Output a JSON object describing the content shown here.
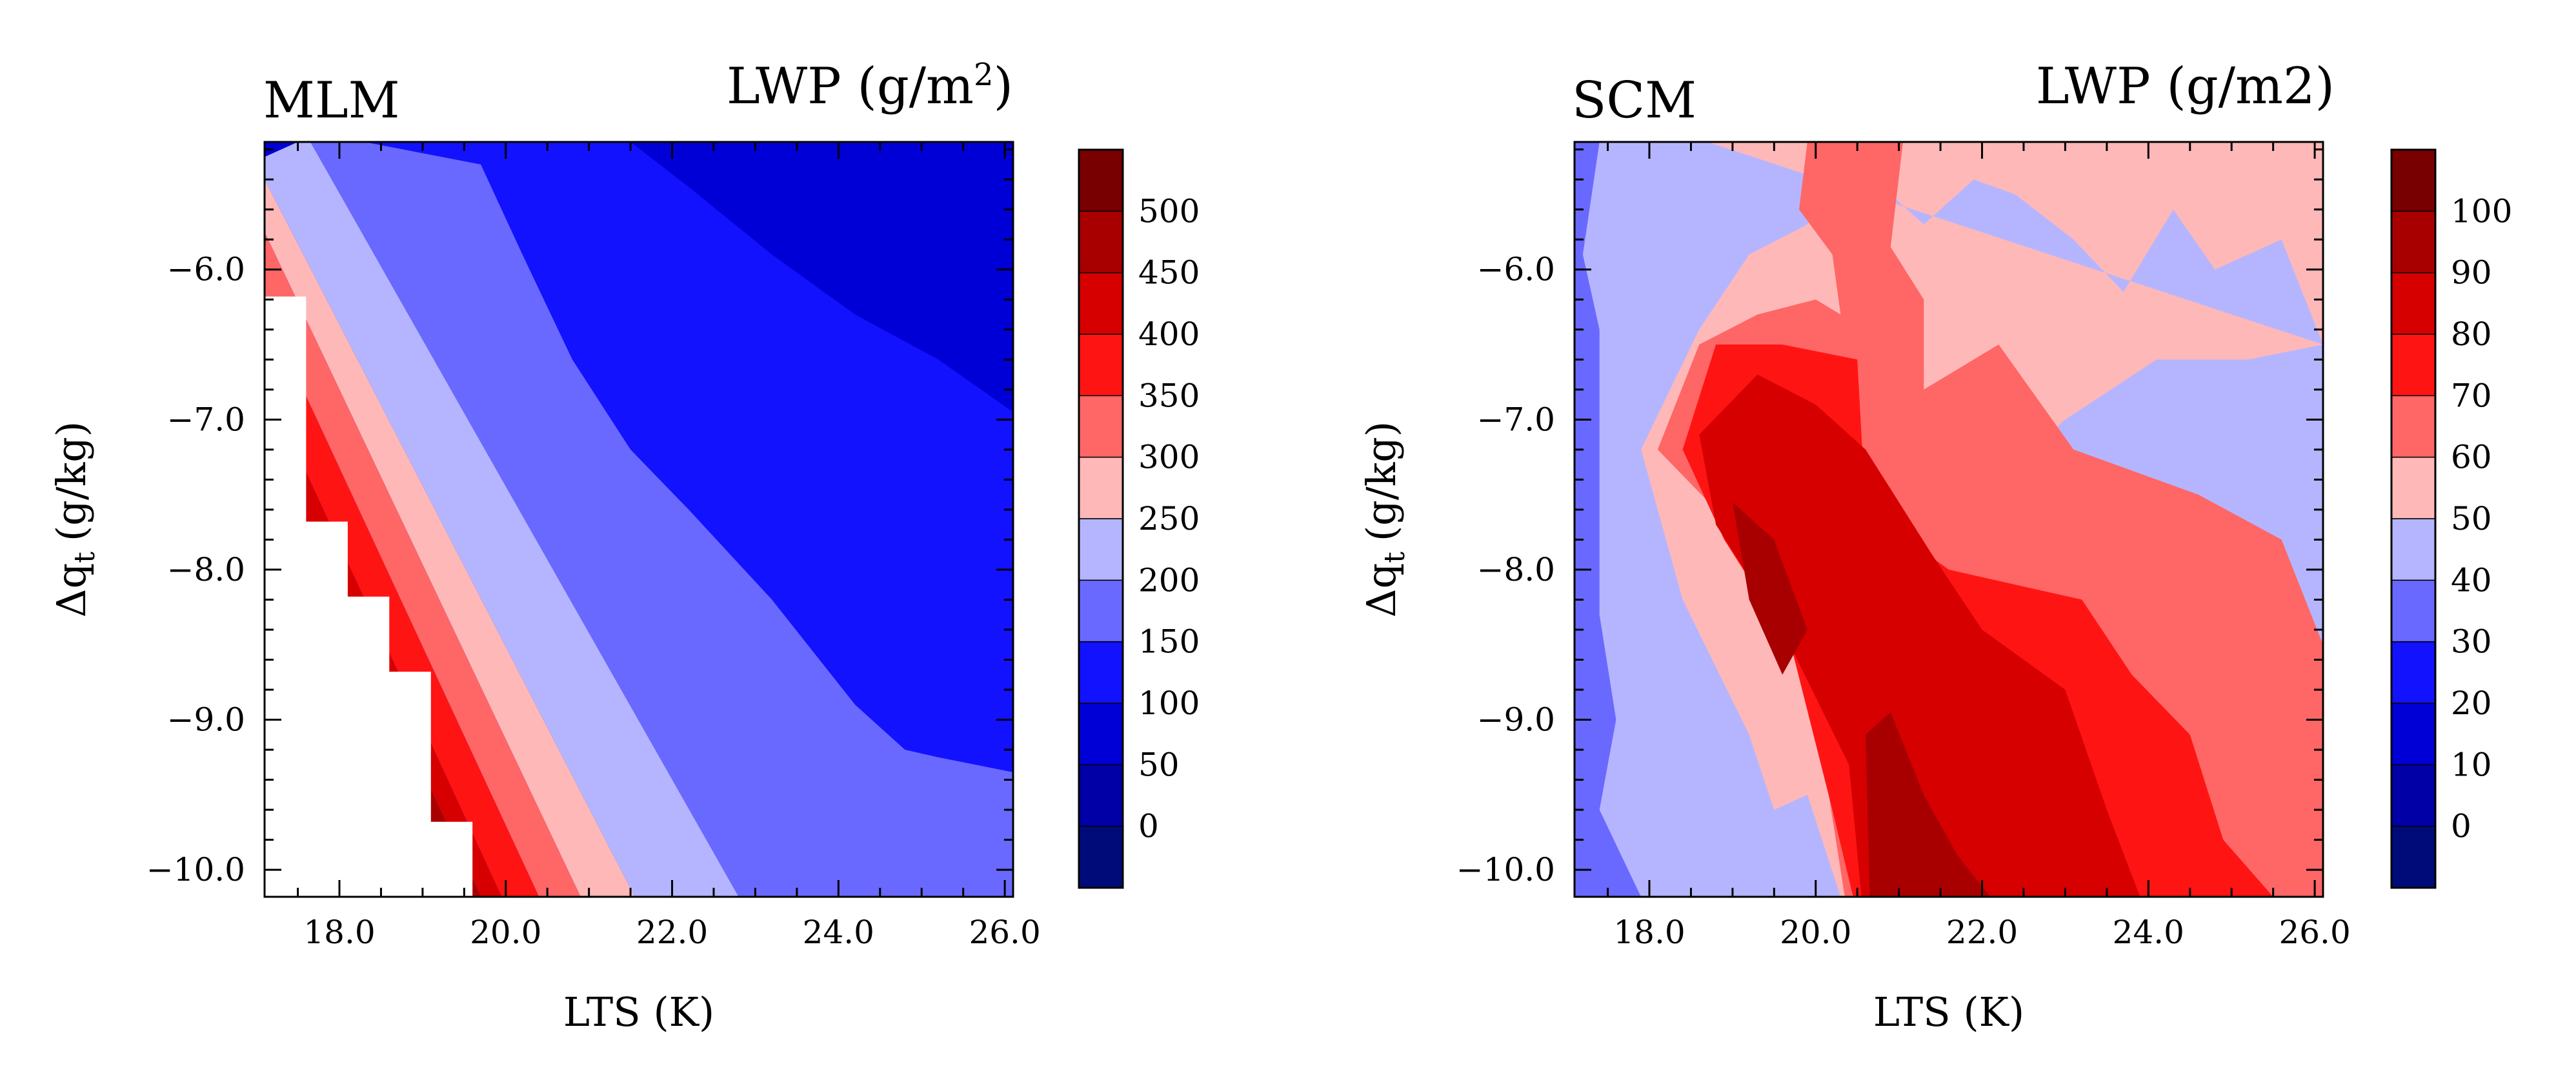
{
  "colors": {
    "level_fills": [
      "#000b7a",
      "#0000a6",
      "#0000d6",
      "#1212ff",
      "#6969ff",
      "#b5b5ff",
      "#ffb8b8",
      "#ff6666",
      "#ff1414",
      "#d60000",
      "#a80000",
      "#780000"
    ],
    "missing": "#ffffff"
  },
  "chart_data": [
    {
      "type": "contour",
      "label": "MLM",
      "title": "LWP (g/m²)",
      "title_main": "LWP (g/m",
      "title_sup": "2",
      "title_end": ")",
      "xlabel": "LTS (K)",
      "ylabel": "Δq",
      "ylabel_sub": "t",
      "ylabel_units": "(g/kg)",
      "xlim": [
        17.1,
        26.1
      ],
      "ylim": [
        -10.18,
        -5.15
      ],
      "xticks": [
        "18.0",
        "20.0",
        "22.0",
        "24.0",
        "26.0"
      ],
      "xtick_values": [
        18,
        20,
        22,
        24,
        26
      ],
      "yticks": [
        "-6.0",
        "-7.0",
        "-8.0",
        "-9.0",
        "-10.0"
      ],
      "ytick_values": [
        -6,
        -7,
        -8,
        -9,
        -10
      ],
      "colorbar_labels": [
        "500",
        "450",
        "400",
        "350",
        "300",
        "250",
        "200",
        "150",
        "100",
        "50",
        "0"
      ],
      "colorbar_levels": [
        500,
        450,
        400,
        350,
        300,
        250,
        200,
        150,
        100,
        50,
        0
      ],
      "missing_region": [
        [
          17.1,
          -10.18
        ],
        [
          17.1,
          -6.18
        ],
        [
          17.6,
          -6.18
        ],
        [
          17.6,
          -7.68
        ],
        [
          18.1,
          -7.68
        ],
        [
          18.1,
          -8.18
        ],
        [
          18.6,
          -8.18
        ],
        [
          18.6,
          -8.68
        ],
        [
          19.1,
          -8.68
        ],
        [
          19.1,
          -9.68
        ],
        [
          19.6,
          -9.68
        ],
        [
          19.6,
          -10.18
        ]
      ],
      "contour_regions": [
        {
          "level": 2,
          "points": [
            [
              19.7,
              -5.15
            ],
            [
              26.1,
              -5.15
            ],
            [
              26.1,
              -6.95
            ],
            [
              25.2,
              -6.6
            ],
            [
              24.2,
              -6.3
            ],
            [
              23.2,
              -5.9
            ],
            [
              22.2,
              -5.45
            ],
            [
              21.5,
              -5.15
            ]
          ]
        },
        {
          "level": 3,
          "points": [
            [
              18.3,
              -5.15
            ],
            [
              19.7,
              -5.15
            ],
            [
              21.5,
              -5.15
            ],
            [
              22.2,
              -5.45
            ],
            [
              23.2,
              -5.9
            ],
            [
              24.2,
              -6.3
            ],
            [
              25.2,
              -6.6
            ],
            [
              26.1,
              -6.95
            ],
            [
              26.1,
              -9.35
            ],
            [
              25.2,
              -9.25
            ],
            [
              24.8,
              -9.2
            ],
            [
              24.2,
              -8.9
            ],
            [
              23.7,
              -8.55
            ],
            [
              23.2,
              -8.2
            ],
            [
              22.2,
              -7.6
            ],
            [
              21.5,
              -7.2
            ],
            [
              20.8,
              -6.6
            ],
            [
              20.2,
              -5.9
            ],
            [
              19.7,
              -5.3
            ]
          ]
        },
        {
          "level": 4,
          "points": [
            [
              17.65,
              -5.15
            ],
            [
              18.3,
              -5.15
            ],
            [
              19.7,
              -5.3
            ],
            [
              20.2,
              -5.9
            ],
            [
              20.8,
              -6.6
            ],
            [
              21.5,
              -7.2
            ],
            [
              22.2,
              -7.6
            ],
            [
              23.2,
              -8.2
            ],
            [
              23.7,
              -8.55
            ],
            [
              24.2,
              -8.9
            ],
            [
              24.8,
              -9.2
            ],
            [
              25.2,
              -9.25
            ],
            [
              26.1,
              -9.35
            ],
            [
              26.1,
              -10.18
            ],
            [
              22.8,
              -10.18
            ]
          ]
        },
        {
          "level": 5,
          "points": [
            [
              17.5,
              -5.15
            ],
            [
              17.65,
              -5.15
            ],
            [
              22.8,
              -10.18
            ],
            [
              21.55,
              -10.18
            ],
            [
              17.1,
              -5.4
            ],
            [
              17.1,
              -5.25
            ]
          ]
        },
        {
          "level": 6,
          "points": [
            [
              17.1,
              -5.25
            ],
            [
              17.1,
              -5.4
            ],
            [
              21.55,
              -10.18
            ],
            [
              20.9,
              -10.18
            ],
            [
              17.1,
              -5.75
            ]
          ]
        },
        {
          "level": 7,
          "points": [
            [
              17.1,
              -5.75
            ],
            [
              20.9,
              -10.18
            ],
            [
              20.4,
              -10.18
            ],
            [
              17.1,
              -6.25
            ]
          ]
        },
        {
          "level": 8,
          "points": [
            [
              17.1,
              -6.25
            ],
            [
              20.4,
              -10.18
            ],
            [
              19.95,
              -10.18
            ],
            [
              17.1,
              -6.75
            ]
          ]
        },
        {
          "level": 9,
          "points": [
            [
              17.1,
              -6.75
            ],
            [
              19.95,
              -10.18
            ],
            [
              19.7,
              -10.18
            ],
            [
              17.1,
              -7.1
            ]
          ]
        },
        {
          "level": 10,
          "points": [
            [
              17.1,
              -7.1
            ],
            [
              19.7,
              -10.18
            ],
            [
              19.5,
              -10.18
            ],
            [
              17.1,
              -7.45
            ]
          ]
        },
        {
          "level": 11,
          "points": [
            [
              17.1,
              -7.45
            ],
            [
              19.5,
              -10.18
            ],
            [
              17.1,
              -10.18
            ]
          ]
        }
      ]
    },
    {
      "type": "contour",
      "label": "SCM",
      "title": "LWP (g/m2)",
      "title_main": "LWP (g/m2)",
      "title_sup": "",
      "title_end": "",
      "xlabel": "LTS (K)",
      "ylabel": "Δq",
      "ylabel_sub": "t",
      "ylabel_units": "(g/kg)",
      "xlim": [
        17.1,
        26.1
      ],
      "ylim": [
        -10.18,
        -5.15
      ],
      "xticks": [
        "18.0",
        "20.0",
        "22.0",
        "24.0",
        "26.0"
      ],
      "xtick_values": [
        18,
        20,
        22,
        24,
        26
      ],
      "yticks": [
        "-6.0",
        "-7.0",
        "-8.0",
        "-9.0",
        "-10.0"
      ],
      "ytick_values": [
        -6,
        -7,
        -8,
        -9,
        -10
      ],
      "colorbar_labels": [
        "100",
        "90",
        "80",
        "70",
        "60",
        "50",
        "40",
        "30",
        "20",
        "10",
        "0"
      ],
      "colorbar_levels": [
        100,
        90,
        80,
        70,
        60,
        50,
        40,
        30,
        20,
        10,
        0
      ],
      "missing_region": null,
      "contour_regions": [
        {
          "level": 4,
          "points": [
            [
              17.1,
              -5.15
            ],
            [
              26.1,
              -5.15
            ],
            [
              26.1,
              -10.18
            ],
            [
              17.1,
              -10.18
            ]
          ]
        },
        {
          "level": 5,
          "points": [
            [
              17.4,
              -5.15
            ],
            [
              26.1,
              -5.15
            ],
            [
              26.1,
              -10.18
            ],
            [
              17.9,
              -10.18
            ],
            [
              17.4,
              -9.6
            ],
            [
              17.6,
              -9.0
            ],
            [
              17.4,
              -8.3
            ],
            [
              17.4,
              -6.4
            ],
            [
              17.2,
              -5.9
            ]
          ]
        },
        {
          "level": 6,
          "points": [
            [
              18.7,
              -5.15
            ],
            [
              26.1,
              -5.15
            ],
            [
              26.1,
              -6.5
            ],
            [
              25.6,
              -5.8
            ],
            [
              24.8,
              -6.0
            ],
            [
              24.3,
              -5.6
            ],
            [
              23.7,
              -6.15
            ],
            [
              23.1,
              -5.8
            ],
            [
              22.4,
              -5.5
            ],
            [
              21.9,
              -5.4
            ],
            [
              21.3,
              -5.7
            ],
            [
              20.4,
              -5.25
            ],
            [
              19.9,
              -5.7
            ],
            [
              19.2,
              -5.9
            ],
            [
              18.6,
              -6.4
            ],
            [
              17.9,
              -7.2
            ],
            [
              18.4,
              -8.2
            ],
            [
              19.2,
              -9.1
            ],
            [
              19.5,
              -9.6
            ],
            [
              19.9,
              -9.5
            ],
            [
              20.3,
              -10.18
            ],
            [
              20.5,
              -10.18
            ],
            [
              20.2,
              -9.2
            ],
            [
              22.0,
              -7.5
            ],
            [
              23.0,
              -7.0
            ],
            [
              24.1,
              -6.6
            ],
            [
              25.2,
              -6.6
            ],
            [
              26.1,
              -6.5
            ]
          ]
        },
        {
          "level": 7,
          "points": [
            [
              19.9,
              -5.15
            ],
            [
              21.05,
              -5.15
            ],
            [
              20.9,
              -5.85
            ],
            [
              21.3,
              -6.2
            ],
            [
              21.3,
              -6.8
            ],
            [
              22.2,
              -6.5
            ],
            [
              23.1,
              -7.2
            ],
            [
              24.6,
              -7.5
            ],
            [
              25.6,
              -7.8
            ],
            [
              26.1,
              -8.5
            ],
            [
              26.1,
              -10.18
            ],
            [
              20.35,
              -10.18
            ],
            [
              20.1,
              -9.3
            ],
            [
              19.6,
              -8.3
            ],
            [
              18.8,
              -7.6
            ],
            [
              18.1,
              -7.2
            ],
            [
              18.6,
              -6.5
            ],
            [
              19.3,
              -6.3
            ],
            [
              20.0,
              -6.2
            ],
            [
              20.3,
              -6.3
            ],
            [
              20.2,
              -5.9
            ],
            [
              19.8,
              -5.6
            ]
          ]
        },
        {
          "level": 8,
          "points": [
            [
              18.4,
              -7.2
            ],
            [
              18.8,
              -6.5
            ],
            [
              19.6,
              -6.5
            ],
            [
              20.5,
              -6.6
            ],
            [
              20.6,
              -7.6
            ],
            [
              21.6,
              -8.0
            ],
            [
              22.4,
              -8.1
            ],
            [
              23.2,
              -8.2
            ],
            [
              23.8,
              -8.7
            ],
            [
              24.5,
              -9.1
            ],
            [
              24.9,
              -9.8
            ],
            [
              25.5,
              -10.18
            ],
            [
              20.45,
              -10.18
            ],
            [
              20.2,
              -9.6
            ],
            [
              19.7,
              -8.5
            ],
            [
              18.9,
              -7.8
            ]
          ]
        },
        {
          "level": 9,
          "points": [
            [
              18.6,
              -7.1
            ],
            [
              19.3,
              -6.7
            ],
            [
              20.0,
              -6.9
            ],
            [
              20.6,
              -7.2
            ],
            [
              21.4,
              -7.9
            ],
            [
              22.0,
              -8.4
            ],
            [
              23.0,
              -8.8
            ],
            [
              23.5,
              -9.6
            ],
            [
              23.9,
              -10.18
            ],
            [
              20.55,
              -10.18
            ],
            [
              20.4,
              -9.3
            ],
            [
              19.6,
              -8.4
            ],
            [
              18.8,
              -7.7
            ]
          ]
        },
        {
          "level": 10,
          "points": [
            [
              19.0,
              -7.55
            ],
            [
              19.5,
              -7.8
            ],
            [
              19.9,
              -8.4
            ],
            [
              19.6,
              -8.7
            ],
            [
              19.2,
              -8.2
            ]
          ]
        },
        {
          "level": 10,
          "points": [
            [
              20.6,
              -9.1
            ],
            [
              20.9,
              -8.95
            ],
            [
              21.3,
              -9.5
            ],
            [
              21.7,
              -9.9
            ],
            [
              22.1,
              -10.18
            ],
            [
              20.65,
              -10.18
            ]
          ]
        }
      ]
    }
  ]
}
